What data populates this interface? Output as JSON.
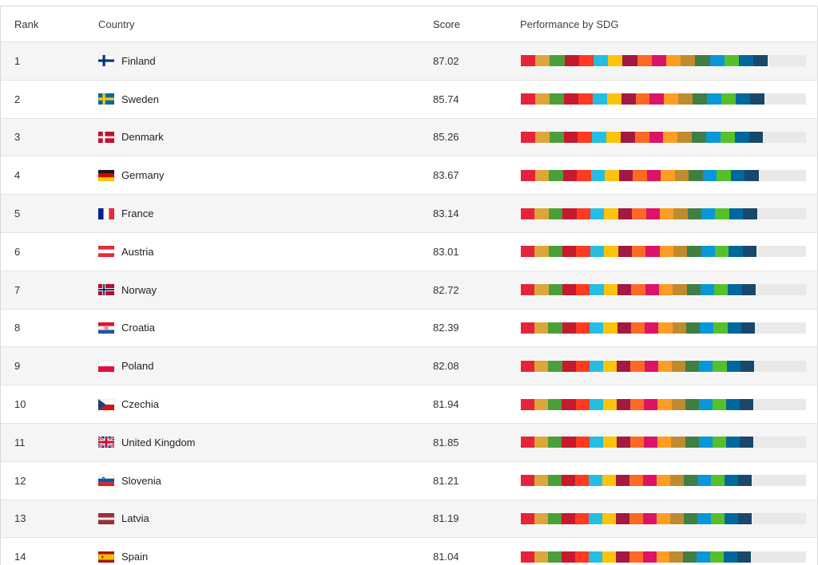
{
  "header": {
    "rank": "Rank",
    "country": "Country",
    "score": "Score",
    "performance": "Performance by SDG"
  },
  "bar": {
    "track_color": "#e9e9e9",
    "max": 100,
    "segments": 17
  },
  "sdg_colors": [
    "#E5243B",
    "#DDA63A",
    "#4C9F38",
    "#C5192D",
    "#FF3A21",
    "#26BDE2",
    "#FCC30B",
    "#A21942",
    "#FD6925",
    "#DD1367",
    "#FD9D24",
    "#BF8B2E",
    "#3F7E44",
    "#0A97D9",
    "#56C02B",
    "#00689D",
    "#19486A"
  ],
  "rows": [
    {
      "rank": "1",
      "country": "Finland",
      "flag": "fi",
      "score": "87.02"
    },
    {
      "rank": "2",
      "country": "Sweden",
      "flag": "se",
      "score": "85.74"
    },
    {
      "rank": "3",
      "country": "Denmark",
      "flag": "dk",
      "score": "85.26"
    },
    {
      "rank": "4",
      "country": "Germany",
      "flag": "de",
      "score": "83.67"
    },
    {
      "rank": "5",
      "country": "France",
      "flag": "fr",
      "score": "83.14"
    },
    {
      "rank": "6",
      "country": "Austria",
      "flag": "at",
      "score": "83.01"
    },
    {
      "rank": "7",
      "country": "Norway",
      "flag": "no",
      "score": "82.72"
    },
    {
      "rank": "8",
      "country": "Croatia",
      "flag": "hr",
      "score": "82.39"
    },
    {
      "rank": "9",
      "country": "Poland",
      "flag": "pl",
      "score": "82.08"
    },
    {
      "rank": "10",
      "country": "Czechia",
      "flag": "cz",
      "score": "81.94"
    },
    {
      "rank": "11",
      "country": "United Kingdom",
      "flag": "gb",
      "score": "81.85"
    },
    {
      "rank": "12",
      "country": "Slovenia",
      "flag": "si",
      "score": "81.21"
    },
    {
      "rank": "13",
      "country": "Latvia",
      "flag": "lv",
      "score": "81.19"
    },
    {
      "rank": "14",
      "country": "Spain",
      "flag": "es",
      "score": "81.04"
    }
  ]
}
